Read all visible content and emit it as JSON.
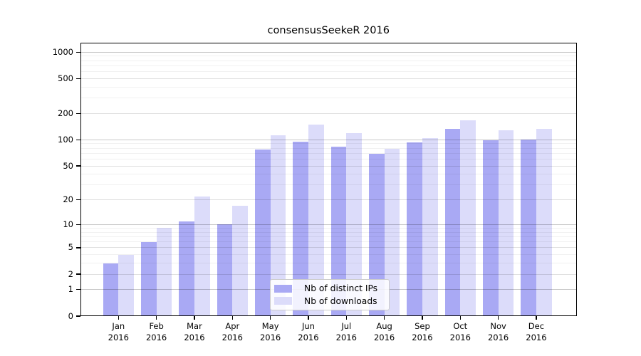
{
  "title": "consensusSeekeR 2016",
  "chart_data": {
    "type": "bar",
    "title": "consensusSeekeR 2016",
    "categories": [
      "Jan",
      "Feb",
      "Mar",
      "Apr",
      "May",
      "Jun",
      "Jul",
      "Aug",
      "Sep",
      "Oct",
      "Nov",
      "Dec"
    ],
    "x_tick_year": "2016",
    "series": [
      {
        "name": "Nb of distinct IPs",
        "color": "#a9a9f4",
        "values": [
          3,
          6,
          11,
          10,
          77,
          95,
          83,
          69,
          94,
          133,
          98,
          100
        ]
      },
      {
        "name": "Nb of downloads",
        "color": "#dcdcfa",
        "values": [
          4,
          9,
          22,
          17,
          113,
          149,
          120,
          79,
          105,
          167,
          128,
          134
        ]
      }
    ],
    "xlabel": "",
    "ylabel": "",
    "y_ticks": [
      0,
      1,
      2,
      5,
      10,
      20,
      50,
      100,
      200,
      500,
      1000
    ],
    "y_scale": "log1p",
    "ylim": [
      0,
      1250
    ],
    "grid": true,
    "legend_position": "lower center"
  }
}
